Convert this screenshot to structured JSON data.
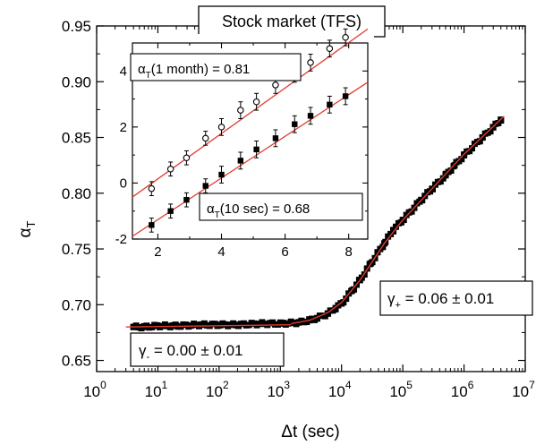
{
  "chart_data": [
    {
      "type": "scatter",
      "title": "Stock market (TFS)",
      "xlabel": "Δt (sec)",
      "ylabel": "αT",
      "x_scale": "log",
      "xlim": [
        1,
        10000000
      ],
      "ylim": [
        0.64,
        0.95
      ],
      "x_ticks": [
        {
          "base": "10",
          "exp": "0"
        },
        {
          "base": "10",
          "exp": "1"
        },
        {
          "base": "10",
          "exp": "2"
        },
        {
          "base": "10",
          "exp": "3"
        },
        {
          "base": "10",
          "exp": "4"
        },
        {
          "base": "10",
          "exp": "5"
        },
        {
          "base": "10",
          "exp": "6"
        },
        {
          "base": "10",
          "exp": "7"
        }
      ],
      "y_ticks": [
        "0.65",
        "0.70",
        "0.75",
        "0.80",
        "0.85",
        "0.90",
        "0.95"
      ],
      "series": [
        {
          "marker": "filled-square",
          "color": "#000000",
          "x": [
            4,
            6,
            10,
            20,
            50,
            100,
            200,
            500,
            1000,
            2000,
            3000,
            4000,
            6000,
            8000,
            10000,
            15000,
            20000,
            30000,
            50000,
            70000,
            100000,
            200000,
            300000,
            500000,
            700000,
            1000000,
            2000000,
            3000000,
            4000000
          ],
          "y": [
            0.68,
            0.68,
            0.681,
            0.681,
            0.682,
            0.682,
            0.682,
            0.683,
            0.683,
            0.684,
            0.686,
            0.688,
            0.692,
            0.697,
            0.701,
            0.713,
            0.722,
            0.737,
            0.755,
            0.767,
            0.776,
            0.794,
            0.804,
            0.816,
            0.825,
            0.834,
            0.85,
            0.859,
            0.866
          ]
        }
      ],
      "fit_lines": [
        {
          "color": "#e03c31",
          "x": [
            3,
            1500
          ],
          "y": [
            0.68,
            0.682
          ]
        },
        {
          "color": "#e03c31",
          "x": [
            1500,
            3000,
            6000,
            10000,
            20000,
            50000,
            100000,
            300000,
            1000000,
            4500000
          ],
          "y": [
            0.683,
            0.686,
            0.693,
            0.702,
            0.722,
            0.755,
            0.776,
            0.804,
            0.835,
            0.869
          ]
        }
      ],
      "annotations": [
        {
          "symbol": "γ",
          "subscript": "-",
          "text": " = 0.00 ± 0.01"
        },
        {
          "symbol": "γ",
          "subscript": "+",
          "text": " = 0.06 ± 0.01"
        }
      ],
      "grid": false
    },
    {
      "type": "scatter",
      "inset": true,
      "xlim": [
        1.2,
        8.6
      ],
      "ylim": [
        -2,
        5
      ],
      "x_ticks": [
        "2",
        "4",
        "6",
        "8"
      ],
      "y_ticks": [
        "-2",
        "0",
        "2",
        "4"
      ],
      "series": [
        {
          "marker": "open-circle",
          "color": "#000000",
          "x": [
            1.8,
            2.4,
            2.9,
            3.5,
            4.0,
            4.6,
            5.1,
            5.7,
            6.3,
            6.8,
            7.4,
            7.9
          ],
          "y": [
            -0.2,
            0.5,
            0.9,
            1.6,
            2.0,
            2.6,
            2.9,
            3.5,
            3.9,
            4.3,
            4.8,
            5.2
          ]
        },
        {
          "marker": "filled-square",
          "color": "#000000",
          "x": [
            1.8,
            2.4,
            2.9,
            3.5,
            4.0,
            4.6,
            5.1,
            5.7,
            6.3,
            6.8,
            7.4,
            7.9
          ],
          "y": [
            -1.5,
            -1.0,
            -0.6,
            -0.1,
            0.3,
            0.8,
            1.2,
            1.6,
            2.1,
            2.4,
            2.8,
            3.1
          ]
        }
      ],
      "fit_lines": [
        {
          "color": "#e03c31",
          "x": [
            1.2,
            8.6
          ],
          "y": [
            -0.5,
            5.5
          ]
        },
        {
          "color": "#e03c31",
          "x": [
            1.2,
            8.6
          ],
          "y": [
            -1.9,
            3.6
          ]
        }
      ],
      "annotations": [
        {
          "symbol": "α",
          "subscript": "T",
          "text": "(1 month) = 0.81"
        },
        {
          "symbol": "α",
          "subscript": "T",
          "text": "(10 sec) = 0.68"
        }
      ]
    }
  ],
  "errorbars_inset": [
    0.25,
    0.25,
    0.25,
    0.25,
    0.3,
    0.3,
    0.3,
    0.3,
    0.3,
    0.3,
    0.3,
    0.3
  ]
}
